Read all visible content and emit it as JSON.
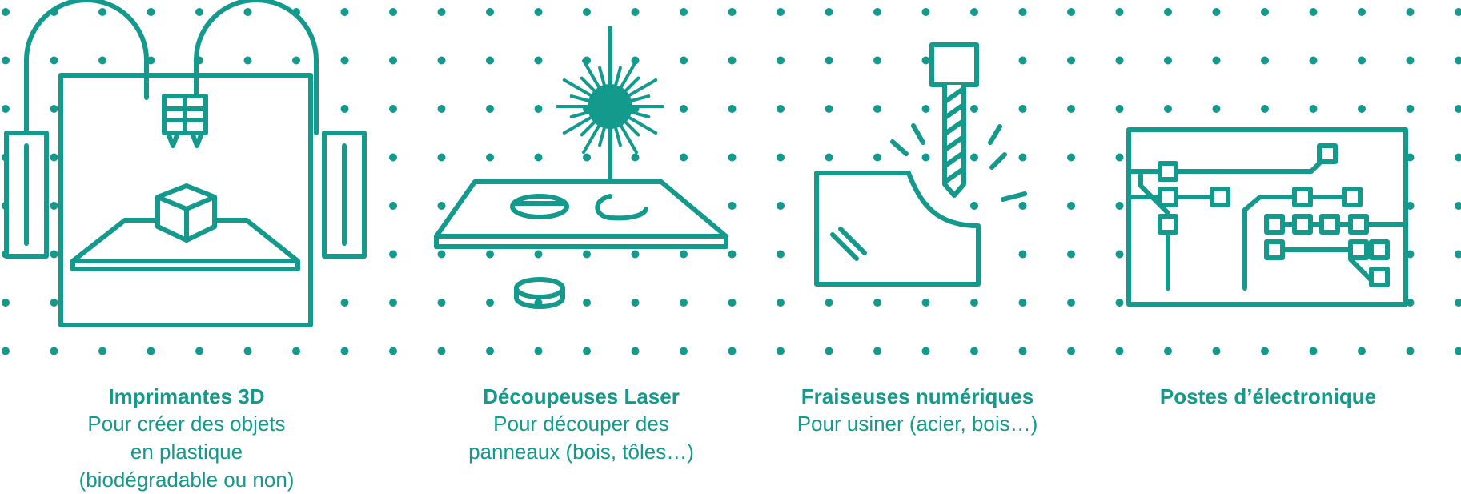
{
  "theme": {
    "accent": "#139a8d",
    "background": "#ffffff"
  },
  "machines": [
    {
      "icon": "3d-printer-icon",
      "title": "Imprimantes 3D",
      "lines": [
        "Pour créer des objets",
        "en plastique",
        "(biodégradable ou non)"
      ]
    },
    {
      "icon": "laser-cutter-icon",
      "title": "Découpeuses Laser",
      "lines": [
        "Pour découper des",
        "panneaux (bois, tôles…)"
      ]
    },
    {
      "icon": "cnc-mill-icon",
      "title": "Fraiseuses numériques",
      "lines": [
        "Pour usiner (acier, bois…)"
      ]
    },
    {
      "icon": "electronics-station-icon",
      "title": "Postes d’électronique",
      "lines": []
    }
  ]
}
